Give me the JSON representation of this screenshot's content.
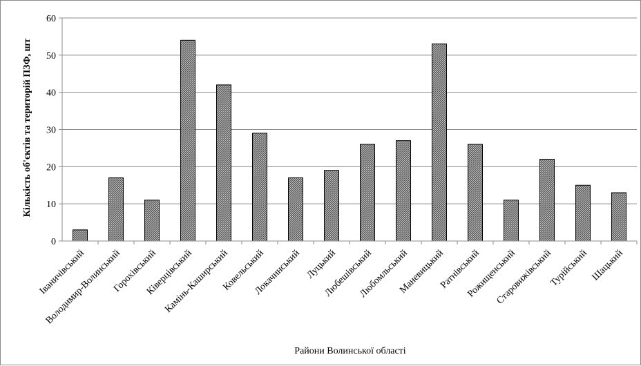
{
  "chart_data": {
    "type": "bar",
    "title": "",
    "xlabel": "Райони Волинської  області",
    "ylabel": "Кількість об'єктів та територій ПЗФ, шт",
    "ylim": [
      0,
      60
    ],
    "yticks": [
      0,
      10,
      20,
      30,
      40,
      50,
      60
    ],
    "grid": true,
    "legend": "none",
    "bar_fill": "hatched dark gray",
    "categories": [
      "Іваничівський",
      "Володимир-Волинський",
      "Горохівський",
      "Ківерцівський",
      "Камінь-Каширський",
      "Ковельський",
      "Локачинський",
      "Луцький",
      "Любешівський",
      "Любомльський",
      "Маневицький",
      "Ратнівський",
      "Рожищенський",
      "Старовижівський",
      "Турійський",
      "Шацький"
    ],
    "values": [
      3,
      17,
      11,
      54,
      42,
      29,
      17,
      19,
      26,
      27,
      53,
      26,
      11,
      22,
      15,
      13
    ]
  }
}
